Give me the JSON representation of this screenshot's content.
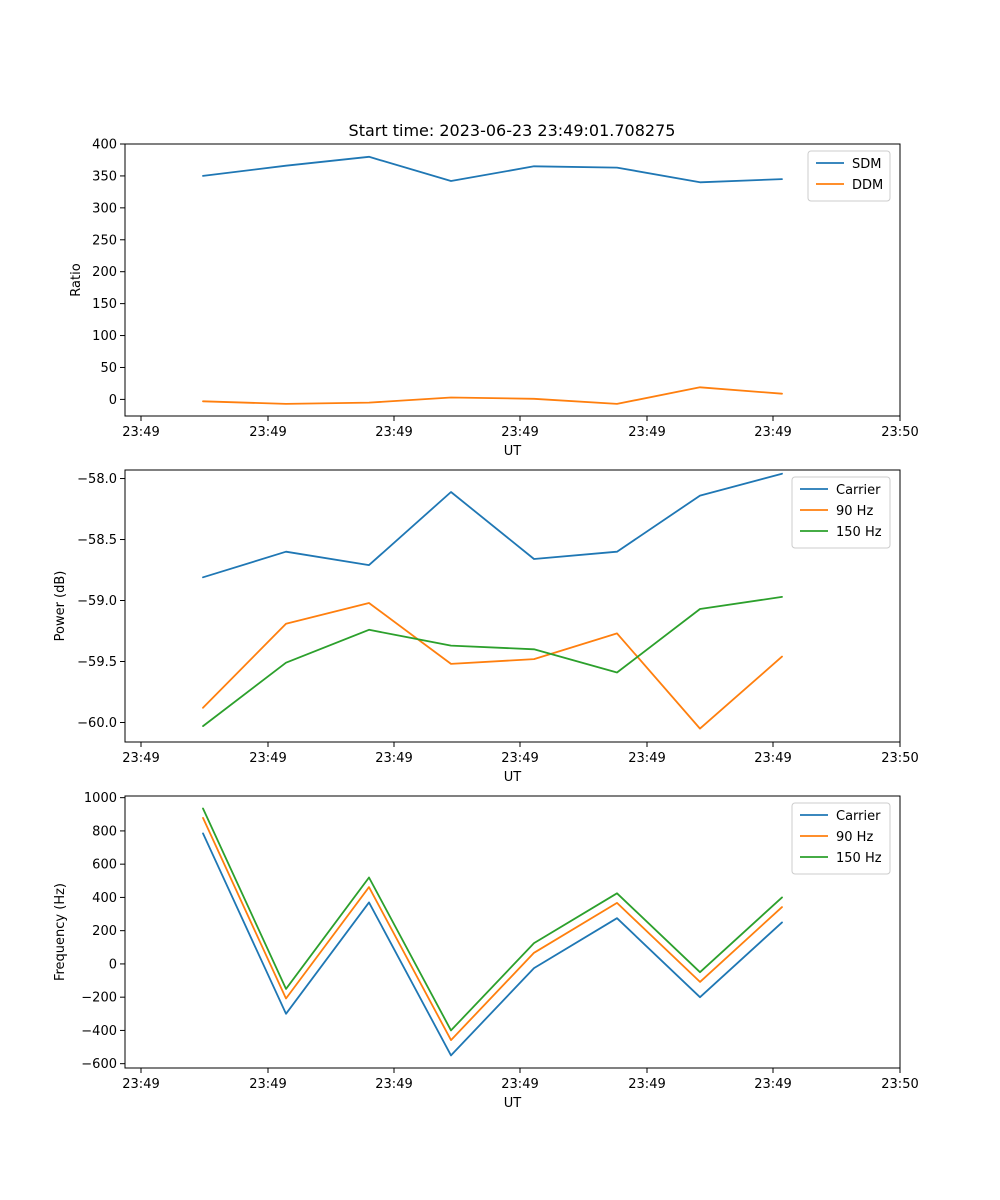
{
  "figure": {
    "title": "Start time: 2023-06-23 23:49:01.708275"
  },
  "chart_data": [
    {
      "type": "line",
      "title": "Start time: 2023-06-23 23:49:01.708275",
      "xlabel": "UT",
      "ylabel": "Ratio",
      "x_tick_labels": [
        "23:49",
        "23:49",
        "23:49",
        "23:49",
        "23:49",
        "23:49",
        "23:50"
      ],
      "yticks": [
        0,
        50,
        100,
        150,
        200,
        250,
        300,
        350,
        400
      ],
      "ylim": [
        -26,
        400
      ],
      "legend": "top-right",
      "grid": false,
      "series": [
        {
          "name": "SDM",
          "color": "#1f77b4",
          "values": [
            350,
            366,
            380,
            342,
            365,
            363,
            340,
            345
          ]
        },
        {
          "name": "DDM",
          "color": "#ff7f0e",
          "values": [
            -3,
            -7,
            -5,
            3,
            1,
            -7,
            19,
            9
          ]
        }
      ]
    },
    {
      "type": "line",
      "xlabel": "UT",
      "ylabel": "Power (dB)",
      "x_tick_labels": [
        "23:49",
        "23:49",
        "23:49",
        "23:49",
        "23:49",
        "23:49",
        "23:50"
      ],
      "yticks": [
        -60.0,
        -59.5,
        -59.0,
        -58.5,
        -58.0
      ],
      "ytick_labels": [
        "−60.0",
        "−59.5",
        "−59.0",
        "−58.5",
        "−58.0"
      ],
      "ylim": [
        -60.16,
        -57.93
      ],
      "legend": "top-right",
      "grid": false,
      "series": [
        {
          "name": "Carrier",
          "color": "#1f77b4",
          "values": [
            -58.81,
            -58.6,
            -58.71,
            -58.11,
            -58.66,
            -58.6,
            -58.14,
            -57.96
          ]
        },
        {
          "name": "90 Hz",
          "color": "#ff7f0e",
          "values": [
            -59.88,
            -59.19,
            -59.02,
            -59.52,
            -59.48,
            -59.27,
            -60.05,
            -59.46
          ]
        },
        {
          "name": "150 Hz",
          "color": "#2ca02c",
          "values": [
            -60.03,
            -59.51,
            -59.24,
            -59.37,
            -59.4,
            -59.59,
            -59.07,
            -58.97
          ]
        }
      ]
    },
    {
      "type": "line",
      "xlabel": "UT",
      "ylabel": "Frequency (Hz)",
      "x_tick_labels": [
        "23:49",
        "23:49",
        "23:49",
        "23:49",
        "23:49",
        "23:49",
        "23:50"
      ],
      "yticks": [
        -600,
        -400,
        -200,
        0,
        200,
        400,
        600,
        800,
        1000
      ],
      "ytick_labels": [
        "−600",
        "−400",
        "−200",
        "0",
        "200",
        "400",
        "600",
        "800",
        "1000"
      ],
      "ylim": [
        -626,
        1010
      ],
      "legend": "top-right",
      "grid": false,
      "series": [
        {
          "name": "Carrier",
          "color": "#1f77b4",
          "values": [
            785,
            -300,
            370,
            -550,
            -25,
            275,
            -200,
            250
          ]
        },
        {
          "name": "90 Hz",
          "color": "#ff7f0e",
          "values": [
            878,
            -208,
            462,
            -458,
            67,
            367,
            -108,
            342
          ]
        },
        {
          "name": "150 Hz",
          "color": "#2ca02c",
          "values": [
            935,
            -150,
            520,
            -400,
            125,
            425,
            -50,
            400
          ]
        }
      ]
    }
  ]
}
